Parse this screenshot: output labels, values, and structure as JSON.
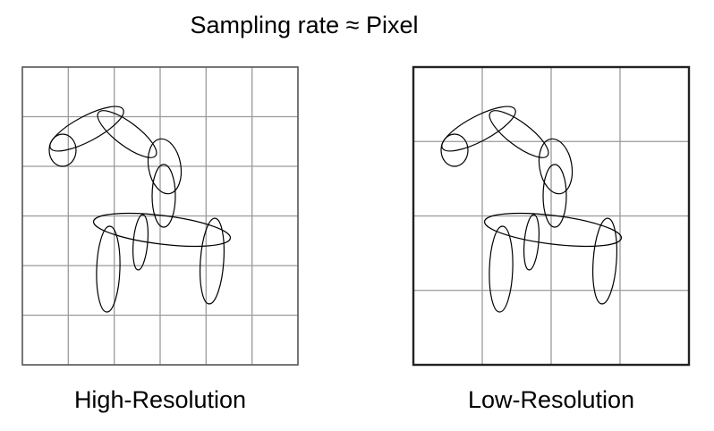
{
  "title": "Sampling rate ≈ Pixel",
  "panels": [
    {
      "id": "high",
      "caption": "High-Resolution",
      "grid_columns": 6,
      "grid_rows": 6,
      "grid_color": "#9a9a9a",
      "border_color": "#555555"
    },
    {
      "id": "low",
      "caption": "Low-Resolution",
      "grid_columns": 4,
      "grid_rows": 4,
      "grid_color": "#9a9a9a",
      "border_color": "#222222"
    }
  ],
  "figure": {
    "name": "ellipse-stick-figure",
    "part_names": [
      "head",
      "neck",
      "upper-body",
      "lower-body",
      "hip",
      "torso",
      "front-leg",
      "inner-leg",
      "back-leg"
    ],
    "stroke_color": "#000000"
  }
}
